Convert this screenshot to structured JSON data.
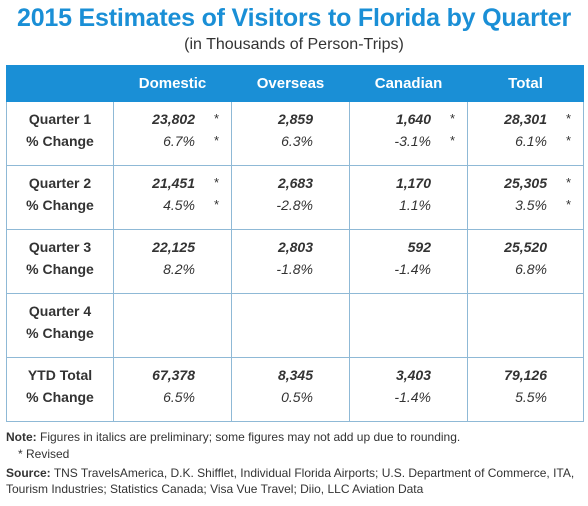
{
  "title": "2015 Estimates of Visitors to Florida by Quarter",
  "subtitle": "(in Thousands of Person-Trips)",
  "columns": [
    "Domestic",
    "Overseas",
    "Canadian",
    "Total"
  ],
  "rows": [
    {
      "label": "Quarter 1",
      "pct_label": "% Change",
      "cells": [
        {
          "value": "23,802",
          "value_star": "*",
          "pct": "6.7%",
          "pct_star": "*"
        },
        {
          "value": "2,859",
          "value_star": "",
          "pct": "6.3%",
          "pct_star": ""
        },
        {
          "value": "1,640",
          "value_star": "*",
          "pct": "-3.1%",
          "pct_star": "*"
        },
        {
          "value": "28,301",
          "value_star": "*",
          "pct": "6.1%",
          "pct_star": "*"
        }
      ]
    },
    {
      "label": "Quarter 2",
      "pct_label": "% Change",
      "cells": [
        {
          "value": "21,451",
          "value_star": "*",
          "pct": "4.5%",
          "pct_star": "*"
        },
        {
          "value": "2,683",
          "value_star": "",
          "pct": "-2.8%",
          "pct_star": ""
        },
        {
          "value": "1,170",
          "value_star": "",
          "pct": "1.1%",
          "pct_star": ""
        },
        {
          "value": "25,305",
          "value_star": "*",
          "pct": "3.5%",
          "pct_star": "*"
        }
      ]
    },
    {
      "label": "Quarter 3",
      "pct_label": "% Change",
      "cells": [
        {
          "value": "22,125",
          "value_star": "",
          "pct": "8.2%",
          "pct_star": ""
        },
        {
          "value": "2,803",
          "value_star": "",
          "pct": "-1.8%",
          "pct_star": ""
        },
        {
          "value": "592",
          "value_star": "",
          "pct": "-1.4%",
          "pct_star": ""
        },
        {
          "value": "25,520",
          "value_star": "",
          "pct": "6.8%",
          "pct_star": ""
        }
      ]
    },
    {
      "label": "Quarter 4",
      "pct_label": "% Change",
      "cells": [
        {
          "value": "",
          "value_star": "",
          "pct": "",
          "pct_star": ""
        },
        {
          "value": "",
          "value_star": "",
          "pct": "",
          "pct_star": ""
        },
        {
          "value": "",
          "value_star": "",
          "pct": "",
          "pct_star": ""
        },
        {
          "value": "",
          "value_star": "",
          "pct": "",
          "pct_star": ""
        }
      ]
    },
    {
      "label": "YTD Total",
      "pct_label": "% Change",
      "cells": [
        {
          "value": "67,378",
          "value_star": "",
          "pct": "6.5%",
          "pct_star": ""
        },
        {
          "value": "8,345",
          "value_star": "",
          "pct": "0.5%",
          "pct_star": ""
        },
        {
          "value": "3,403",
          "value_star": "",
          "pct": "-1.4%",
          "pct_star": ""
        },
        {
          "value": "79,126",
          "value_star": "",
          "pct": "5.5%",
          "pct_star": ""
        }
      ]
    }
  ],
  "notes": {
    "note_label": "Note:",
    "note_text": "Figures in italics are preliminary; some figures may not add up due to rounding.",
    "revised_text": "* Revised",
    "source_label": "Source:",
    "source_text": "TNS TravelsAmerica, D.K. Shifflet, Individual Florida Airports; U.S. Department of Commerce, ITA, Tourism Industries; Statistics Canada; Visa Vue Travel; Diio, LLC Aviation Data"
  }
}
